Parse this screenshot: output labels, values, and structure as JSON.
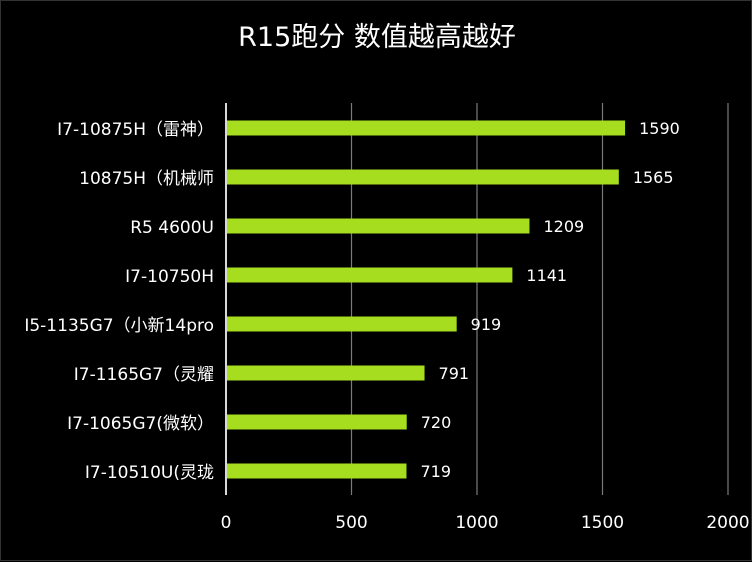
{
  "chart_data": {
    "type": "bar",
    "orientation": "horizontal",
    "title": "R15跑分 数值越高越好",
    "categories": [
      "I7-10875H（雷神）",
      "10875H（机械师",
      "R5 4600U",
      "I7-10750H",
      "I5-1135G7（小新14pro",
      "I7-1165G7（灵耀",
      "I7-1065G7(微软）",
      "I7-10510U(灵珑"
    ],
    "values": [
      1590,
      1565,
      1209,
      1141,
      919,
      791,
      720,
      719
    ],
    "xlim": [
      0,
      2000
    ],
    "xticks": [
      "0",
      "500",
      "1000",
      "1500",
      "2000"
    ],
    "xtick_values": [
      0,
      500,
      1000,
      1500,
      2000
    ],
    "grid": "vertical",
    "legend": "none",
    "bar_color": "#a6dd1f",
    "background": "#000000",
    "text_color": "#ffffff"
  }
}
